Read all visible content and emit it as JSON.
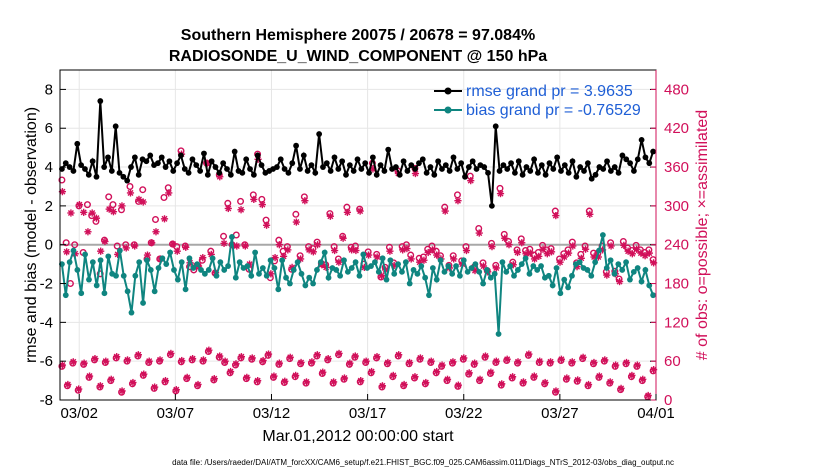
{
  "chart_data": {
    "type": "line",
    "title": "Southern Hemisphere 20075 / 20678 = 97.084%",
    "subtitle": "RADIOSONDE_U_WIND_COMPONENT @ 150 hPa",
    "xlabel": "Mar.01,2012 00:00:00 start",
    "ylabel": "rmse and bias (model - observation)",
    "ylabel_right": "# of obs: o=possible; ×=assimilated",
    "footer": "data file: /Users/raeder/DAI/ATM_forcXX/CAM6_setup/f.e21.FHIST_BGC.f09_025.CAM6assim.011/Diags_NTrS_2012-03/obs_diag_output.nc",
    "x_ticks": [
      {
        "x": 1.5,
        "label": "03/02"
      },
      {
        "x": 6.5,
        "label": "03/07"
      },
      {
        "x": 11.5,
        "label": "03/12"
      },
      {
        "x": 16.5,
        "label": "03/17"
      },
      {
        "x": 21.5,
        "label": "03/22"
      },
      {
        "x": 26.5,
        "label": "03/27"
      },
      {
        "x": 31.5,
        "label": "04/01"
      }
    ],
    "xlim": [
      0.5,
      31.5
    ],
    "ylim": [
      -8,
      9
    ],
    "y_ticks": [
      "-8",
      "-6",
      "-4",
      "-2",
      "0",
      "2",
      "4",
      "6",
      "8"
    ],
    "y2lim": [
      0,
      510
    ],
    "y2_ticks": [
      "0",
      "60",
      "120",
      "180",
      "240",
      "300",
      "360",
      "420",
      "480"
    ],
    "legend": [
      {
        "name": "rmse grand pr = 3.9635",
        "color": "#000000"
      },
      {
        "name": "bias grand pr = -0.76529",
        "color": "#0f8580"
      }
    ],
    "series": [
      {
        "name": "rmse",
        "color": "#000000",
        "values": [
          3.9,
          4.2,
          4.0,
          3.8,
          5.2,
          4.1,
          3.9,
          3.6,
          4.3,
          3.5,
          7.4,
          4.0,
          4.5,
          3.8,
          6.1,
          3.7,
          3.5,
          3.3,
          4.0,
          4.5,
          3.6,
          4.4,
          4.3,
          4.6,
          4.1,
          4.2,
          4.5,
          4.0,
          4.3,
          3.8,
          4.2,
          4.6,
          3.9,
          3.7,
          4.4,
          4.1,
          3.8,
          4.7,
          3.6,
          4.3,
          4.0,
          3.7,
          4.2,
          3.9,
          3.6,
          4.8,
          3.8,
          3.7,
          4.4,
          3.9,
          3.6,
          4.6,
          4.1,
          3.7,
          3.8,
          3.9,
          4.0,
          4.4,
          3.9,
          3.7,
          4.2,
          5.1,
          3.9,
          4.6,
          3.8,
          4.1,
          3.7,
          5.7,
          4.0,
          4.2,
          3.8,
          4.5,
          3.9,
          4.3,
          3.6,
          4.1,
          3.8,
          4.4,
          3.9,
          4.2,
          3.7,
          4.5,
          3.6,
          4.1,
          3.8,
          4.9,
          3.9,
          4.0,
          3.6,
          4.3,
          3.8,
          4.1,
          3.9,
          4.2,
          4.4,
          3.7,
          4.0,
          3.6,
          4.3,
          3.9,
          4.1,
          3.8,
          4.5,
          3.9,
          4.2,
          3.5,
          4.0,
          4.3,
          3.9,
          4.1,
          4.0,
          3.7,
          2.0,
          6.1,
          3.8,
          4.1,
          3.9,
          4.2,
          3.7,
          4.3,
          3.6,
          4.0,
          3.8,
          4.4,
          3.7,
          4.1,
          3.6,
          4.2,
          3.9,
          4.5,
          3.8,
          4.1,
          3.7,
          4.3,
          3.5,
          4.0,
          3.8,
          4.2,
          3.4,
          3.6,
          4.0,
          3.9,
          4.3,
          3.8,
          4.0,
          3.7,
          4.6,
          4.4,
          4.2,
          3.8,
          4.4,
          5.4,
          4.5,
          4.2,
          4.8
        ]
      },
      {
        "name": "bias",
        "color": "#0f8580",
        "values": [
          -1.0,
          -2.6,
          -0.9,
          -0.3,
          -1.3,
          -2.5,
          -0.5,
          -1.8,
          -0.9,
          -2.1,
          -0.8,
          -2.5,
          -0.6,
          -1.5,
          -1.6,
          -0.3,
          -1.6,
          -2.4,
          -3.5,
          -1.6,
          -0.9,
          -3.0,
          -0.8,
          -1.3,
          -2.4,
          -1.2,
          -0.7,
          -1.0,
          -0.4,
          -1.3,
          -1.8,
          -0.9,
          -2.3,
          -0.7,
          -1.2,
          -1.0,
          -1.3,
          -1.5,
          -1.3,
          -0.7,
          -1.6,
          -0.9,
          -1.3,
          -1.1,
          0.4,
          -1.7,
          -0.9,
          -1.2,
          -1.1,
          -1.6,
          -0.4,
          -1.5,
          -1.2,
          -1.6,
          -0.8,
          -1.2,
          -2.3,
          -0.8,
          -1.7,
          -2.0,
          -1.3,
          -0.9,
          -1.5,
          -2.1,
          -1.7,
          -2.0,
          -1.3,
          -0.9,
          -0.4,
          -1.7,
          -1.2,
          -1.3,
          -1.6,
          -0.8,
          -1.4,
          -1.2,
          -0.9,
          -1.6,
          -0.5,
          -1.2,
          -1.1,
          -0.9,
          -1.4,
          -0.7,
          -1.8,
          -0.8,
          -1.5,
          -1.0,
          -1.4,
          -0.9,
          -2.0,
          -1.3,
          -1.5,
          -1.1,
          -1.7,
          -2.6,
          -1.2,
          -1.8,
          -0.8,
          -1.4,
          -1.1,
          -1.5,
          -1.1,
          -1.6,
          -0.8,
          -1.4,
          -1.2,
          -1.0,
          -1.4,
          -2.0,
          -1.3,
          -1.7,
          -1.5,
          -4.6,
          -0.9,
          -1.4,
          -1.1,
          -1.6,
          -1.3,
          -1.0,
          -0.7,
          -1.5,
          -1.1,
          -1.3,
          -1.1,
          -1.7,
          -1.6,
          -2.1,
          -1.2,
          -2.5,
          -1.8,
          -2.2,
          -1.6,
          -1.0,
          -0.9,
          -1.2,
          -1.3,
          -1.6,
          -0.9,
          -0.3,
          0.5,
          -1.2,
          -0.8,
          -1.5,
          -1.0,
          -1.3,
          -0.9,
          -1.8,
          -1.4,
          -1.2,
          -1.9,
          -1.3,
          -2.1,
          -2.6
        ]
      },
      {
        "name": "obs possible",
        "color": "#d1105a",
        "values": [
          340,
          243,
          180,
          240,
          300,
          228,
          302,
          285,
          276,
          195,
          247,
          314,
          302,
          238,
          294,
          240,
          330,
          240,
          307,
          325,
          218,
          243,
          279,
          218,
          313,
          328,
          241,
          237,
          385,
          238,
          206,
          201,
          207,
          216,
          366,
          230,
          196,
          348,
          253,
          304,
          240,
          255,
          307,
          240,
          202,
          317,
          380,
          310,
          278,
          189,
          215,
          247,
          230,
          237,
          202,
          287,
          223,
          314,
          237,
          234,
          244,
          211,
          209,
          288,
          237,
          218,
          253,
          298,
          236,
          238,
          295,
          210,
          229,
          366,
          225,
          190,
          205,
          236,
          212,
          354,
          237,
          240,
          224,
          358,
          219,
          221,
          233,
          238,
          230,
          223,
          298,
          208,
          223,
          317,
          215,
          237,
          346,
          206,
          265,
          212,
          200,
          242,
          208,
          327,
          256,
          245,
          213,
          232,
          249,
          231,
          233,
          224,
          228,
          239,
          232,
          234,
          292,
          218,
          226,
          232,
          244,
          212,
          225,
          238,
          292,
          227,
          227,
          238,
          198,
          243,
          199,
          187,
          245,
          235,
          231,
          239,
          232,
          228,
          232,
          217
        ]
      },
      {
        "name": "obs assimilated",
        "color": "#d1105a",
        "values": [
          322,
          229,
          289,
          226,
          302,
          290,
          260,
          289,
          281,
          230,
          245,
          295,
          291,
          225,
          300,
          235,
          320,
          238,
          310,
          306,
          224,
          243,
          260,
          218,
          280,
          320,
          241,
          230,
          380,
          236,
          212,
          206,
          207,
          220,
          366,
          225,
          197,
          345,
          242,
          296,
          239,
          238,
          294,
          238,
          210,
          310,
          372,
          302,
          270,
          195,
          220,
          240,
          222,
          232,
          205,
          275,
          218,
          308,
          232,
          229,
          240,
          209,
          205,
          284,
          231,
          213,
          250,
          290,
          232,
          231,
          292,
          205,
          224,
          357,
          221,
          192,
          201,
          230,
          208,
          350,
          232,
          234,
          218,
          350,
          213,
          216,
          228,
          232,
          224,
          218,
          292,
          204,
          218,
          308,
          210,
          231,
          339,
          200,
          258,
          207,
          198,
          237,
          204,
          319,
          250,
          240,
          209,
          228,
          243,
          226,
          227,
          218,
          222,
          233,
          226,
          229,
          285,
          213,
          221,
          227,
          238,
          206,
          219,
          233,
          287,
          221,
          221,
          232,
          193,
          238,
          195,
          183,
          239,
          230,
          226,
          233,
          227,
          223,
          227,
          212
        ]
      },
      {
        "name": "obs possible 12Z",
        "color": "#d1105a",
        "values": [
          52,
          22,
          57,
          15,
          55,
          35,
          62,
          20,
          58,
          30,
          65,
          12,
          60,
          25,
          68,
          38,
          58,
          18,
          60,
          28,
          70,
          14,
          59,
          33,
          62,
          22,
          60,
          75,
          31,
          66,
          58,
          42,
          54,
          65,
          33,
          63,
          28,
          59,
          69,
          35,
          55,
          27,
          64,
          36,
          56,
          26,
          57,
          68,
          41,
          62,
          26,
          70,
          32,
          55,
          66,
          28,
          58,
          42,
          65,
          20,
          56,
          36,
          68,
          22,
          56,
          34,
          63,
          25,
          58,
          42,
          52,
          30,
          57,
          21,
          63,
          40,
          55,
          30,
          66,
          41,
          58,
          23,
          61,
          34,
          57,
          26,
          69,
          35,
          58,
          25,
          57,
          12,
          61,
          32,
          57,
          29,
          64,
          22,
          56,
          35,
          60,
          26,
          52,
          16,
          56,
          36,
          52,
          30,
          5,
          45
        ]
      }
    ]
  }
}
